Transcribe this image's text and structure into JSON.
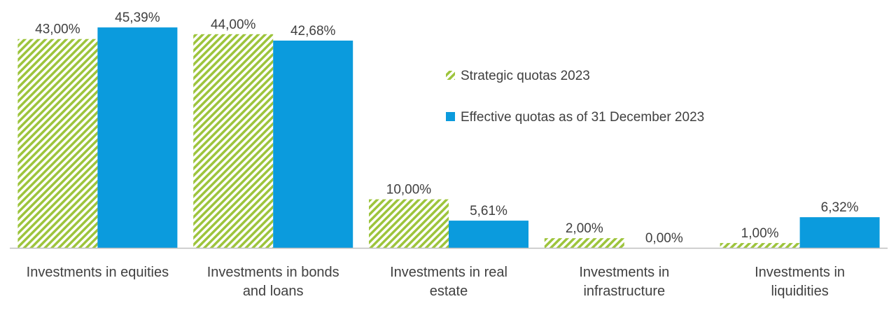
{
  "chart_data": {
    "type": "bar",
    "title": "",
    "xlabel": "",
    "ylabel": "",
    "ylim": [
      0,
      47
    ],
    "grid": false,
    "legend_position": "right",
    "categories": [
      [
        "Investments in equities"
      ],
      [
        "Investments in bonds",
        "and loans"
      ],
      [
        "Investments in real",
        "estate"
      ],
      [
        "Investments in",
        "infrastructure"
      ],
      [
        "Investments in",
        "liquidities"
      ]
    ],
    "series": [
      {
        "name": "Strategic quotas 2023",
        "color": "#9DC43C",
        "pattern": "diagonal-hatch",
        "values": [
          43.0,
          44.0,
          10.0,
          2.0,
          1.0
        ],
        "labels": [
          "43,00%",
          "44,00%",
          "10,00%",
          "2,00%",
          "1,00%"
        ]
      },
      {
        "name": "Effective quotas as of 31 December 2023",
        "color": "#0B9BDD",
        "pattern": "solid",
        "values": [
          45.39,
          42.68,
          5.61,
          0.0,
          6.32
        ],
        "labels": [
          "45,39%",
          "42,68%",
          "5,61%",
          "0,00%",
          "6,32%"
        ]
      }
    ]
  }
}
